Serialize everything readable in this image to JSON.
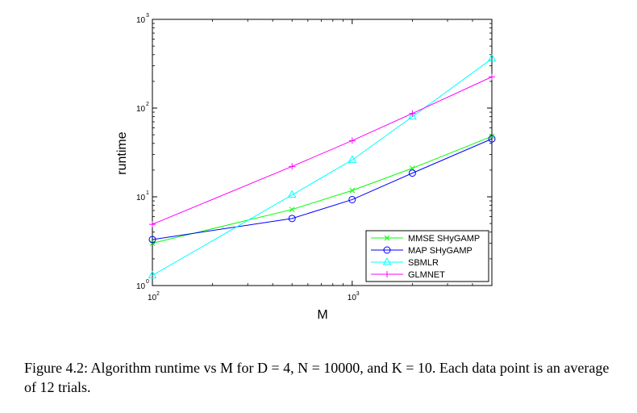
{
  "chart_data": {
    "type": "line",
    "x_scale": "log",
    "y_scale": "log",
    "xlabel": "M",
    "ylabel": "runtime",
    "xlim": [
      100,
      5000
    ],
    "ylim": [
      1,
      1000
    ],
    "x_ticks": [
      {
        "base": "10",
        "exp": "2"
      },
      {
        "base": "10",
        "exp": "3"
      }
    ],
    "y_ticks": [
      {
        "base": "10",
        "exp": "0"
      },
      {
        "base": "10",
        "exp": "1"
      },
      {
        "base": "10",
        "exp": "2"
      },
      {
        "base": "10",
        "exp": "3"
      }
    ],
    "legend_position": "bottom-right",
    "x": [
      100,
      500,
      1000,
      2000,
      5000
    ],
    "series": [
      {
        "name": "MMSE SHyGAMP",
        "color": "#00ff00",
        "marker": "x",
        "values": [
          3.0,
          7.2,
          11.8,
          21,
          48
        ]
      },
      {
        "name": "MAP SHyGAMP",
        "color": "#0000ff",
        "marker": "o",
        "values": [
          3.3,
          5.7,
          9.3,
          18.5,
          45
        ]
      },
      {
        "name": "SBMLR",
        "color": "#00ffff",
        "marker": "triangle",
        "values": [
          1.3,
          10.5,
          26,
          80,
          360
        ]
      },
      {
        "name": "GLMNET",
        "color": "#ff00ff",
        "marker": "+",
        "values": [
          4.9,
          22,
          43,
          87,
          225
        ]
      }
    ]
  },
  "caption": "Figure 4.2: Algorithm runtime vs M for D = 4, N = 10000, and K = 10. Each data point is an average of 12 trials."
}
